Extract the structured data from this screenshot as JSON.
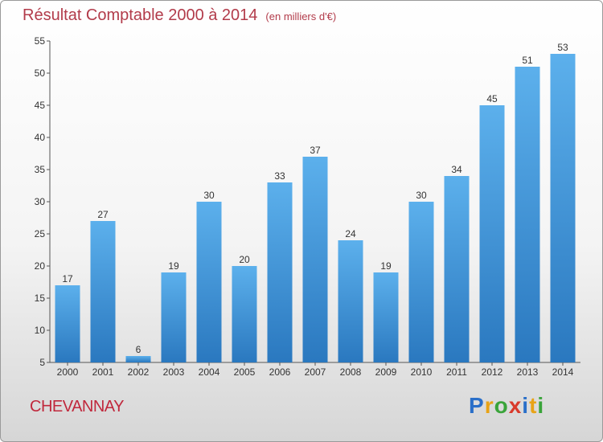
{
  "chart_data": {
    "type": "bar",
    "title": "Résultat Comptable 2000 à 2014",
    "subtitle": "(en milliers d'€)",
    "xlabel": "",
    "ylabel": "",
    "categories": [
      "2000",
      "2001",
      "2002",
      "2003",
      "2004",
      "2005",
      "2006",
      "2007",
      "2008",
      "2009",
      "2010",
      "2011",
      "2012",
      "2013",
      "2014"
    ],
    "values": [
      17,
      27,
      6,
      19,
      30,
      20,
      33,
      37,
      24,
      19,
      30,
      34,
      45,
      51,
      53
    ],
    "ylim": [
      5,
      55
    ],
    "yticks": [
      5,
      10,
      15,
      20,
      25,
      30,
      35,
      40,
      45,
      50,
      55
    ],
    "grid": false,
    "bar_color": "#4a9de0"
  },
  "footer": {
    "commune": "CHEVANNAY",
    "brand_letters": [
      {
        "char": "P",
        "color": "#2a6fc9"
      },
      {
        "char": "r",
        "color": "#e8a317"
      },
      {
        "char": "o",
        "color": "#3aa43a"
      },
      {
        "char": "x",
        "color": "#d93a2b"
      },
      {
        "char": "i",
        "color": "#2a6fc9"
      },
      {
        "char": "t",
        "color": "#e8a317"
      },
      {
        "char": "i",
        "color": "#3aa43a"
      }
    ]
  }
}
